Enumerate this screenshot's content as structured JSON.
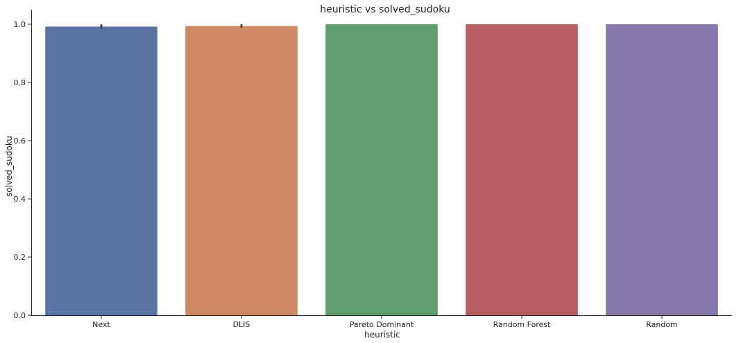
{
  "chart_data": {
    "type": "bar",
    "title": "heuristic vs solved_sudoku",
    "xlabel": "heuristic",
    "ylabel": "solved_sudoku",
    "categories": [
      "Next",
      "DLIS",
      "Pareto Dominant",
      "Random Forest",
      "Random"
    ],
    "values": [
      0.992,
      0.994,
      1.0,
      1.0,
      1.0
    ],
    "error_bars": [
      {
        "low": 0.984,
        "high": 1.0
      },
      {
        "low": 0.988,
        "high": 1.0
      },
      null,
      null,
      null
    ],
    "colors": [
      "#5975a4",
      "#cc8963",
      "#5f9e6e",
      "#b55d60",
      "#857aab"
    ],
    "ylim": [
      0,
      1.05
    ],
    "yticks": [
      0.0,
      0.2,
      0.4,
      0.6,
      0.8,
      1.0
    ],
    "ytick_labels": [
      "0.0",
      "0.2",
      "0.4",
      "0.6",
      "0.8",
      "1.0"
    ],
    "grid": false,
    "legend": "none"
  }
}
